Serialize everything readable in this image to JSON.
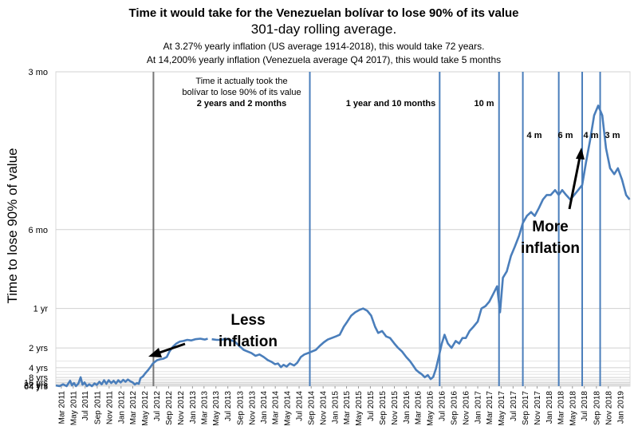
{
  "chart_data": {
    "type": "line",
    "title": "Time it would take for the Venezuelan bolívar to lose 90% of its value",
    "subtitle": "301-day rolling average.",
    "notes": [
      "At 3.27% yearly inflation (US average 1914-2018), this would take 72 years.",
      "At 14,200% yearly inflation (Venezuela average Q4 2017), this would take 5 months"
    ],
    "ylabel": "Time to lose 90% of value",
    "y_scale": "reciprocal",
    "y_ticks": [
      {
        "label": "3 mo",
        "years": 0.25
      },
      {
        "label": "6 mo",
        "years": 0.5
      },
      {
        "label": "1 yr",
        "years": 1
      },
      {
        "label": "2 yrs",
        "years": 2
      },
      {
        "label": "4 yrs",
        "years": 4
      },
      {
        "label": "8 yrs",
        "years": 8
      },
      {
        "label": "16 yrs",
        "years": 16
      },
      {
        "label": "32 yrs",
        "years": 32
      },
      {
        "label": "64 yrs",
        "years": 64
      }
    ],
    "x_ticks": [
      "Mar 2011",
      "May 2011",
      "Jul 2011",
      "Sep 2011",
      "Nov 2011",
      "Jan 2012",
      "Mar 2012",
      "May 2012",
      "Jul 2012",
      "Sep 2012",
      "Nov 2012",
      "Jan 2013",
      "Mar 2013",
      "May 2013",
      "Jul 2013",
      "Sep 2013",
      "Nov 2013",
      "Jan 2014",
      "Mar 2014",
      "May 2014",
      "Jul 2014",
      "Sep 2014",
      "Nov 2014",
      "Jan 2015",
      "Mar 2015",
      "May 2015",
      "Jul 2015",
      "Sep 2015",
      "Nov 2015",
      "Jan 2016",
      "Mar 2016",
      "May 2016",
      "Jul 2016",
      "Sep 2016",
      "Nov 2016",
      "Jan 2017",
      "Mar 2017",
      "May 2017",
      "Jul 2017",
      "Sep 2017",
      "Nov 2017",
      "Jan 2018",
      "Mar 2018",
      "May 2018",
      "Jul 2018",
      "Sep 2018",
      "Nov 2018",
      "Jan 2019"
    ],
    "series": [
      {
        "color": "#4a7ebb",
        "points": [
          [
            "2011-02-01",
            40
          ],
          [
            "2011-02-20",
            64
          ],
          [
            "2011-03-10",
            26
          ],
          [
            "2011-03-28",
            64
          ],
          [
            "2011-04-15",
            12
          ],
          [
            "2011-04-25",
            40
          ],
          [
            "2011-05-05",
            18
          ],
          [
            "2011-05-15",
            64
          ],
          [
            "2011-05-28",
            20
          ],
          [
            "2011-06-08",
            7.8
          ],
          [
            "2011-06-18",
            30
          ],
          [
            "2011-06-28",
            16
          ],
          [
            "2011-07-10",
            64
          ],
          [
            "2011-07-22",
            26
          ],
          [
            "2011-08-05",
            64
          ],
          [
            "2011-08-18",
            20
          ],
          [
            "2011-08-30",
            32
          ],
          [
            "2011-09-12",
            14
          ],
          [
            "2011-09-24",
            26
          ],
          [
            "2011-10-06",
            11
          ],
          [
            "2011-10-18",
            22
          ],
          [
            "2011-10-30",
            11
          ],
          [
            "2011-11-12",
            18
          ],
          [
            "2011-11-24",
            12
          ],
          [
            "2011-12-06",
            20
          ],
          [
            "2011-12-18",
            11
          ],
          [
            "2011-12-30",
            16
          ],
          [
            "2012-01-12",
            10.5
          ],
          [
            "2012-01-24",
            14
          ],
          [
            "2012-02-05",
            10
          ],
          [
            "2012-02-18",
            13
          ],
          [
            "2012-03-01",
            16
          ],
          [
            "2012-03-12",
            28
          ],
          [
            "2012-03-22",
            18
          ],
          [
            "2012-04-01",
            22
          ],
          [
            "2012-04-10",
            8.5
          ],
          [
            "2012-04-22",
            7.2
          ],
          [
            "2012-05-05",
            5.5
          ],
          [
            "2012-05-18",
            4.6
          ],
          [
            "2012-06-01",
            3.8
          ],
          [
            "2012-06-12",
            3.3
          ],
          [
            "2012-06-22",
            3.1
          ],
          [
            "2012-07-04",
            2.9
          ],
          [
            "2012-07-20",
            2.8
          ],
          [
            "2012-08-05",
            2.75
          ],
          [
            "2012-08-22",
            2.6
          ],
          [
            "2012-09-05",
            2.2
          ],
          [
            "2012-09-22",
            1.95
          ],
          [
            "2012-10-10",
            1.8
          ],
          [
            "2012-10-28",
            1.72
          ],
          [
            "2012-11-15",
            1.7
          ],
          [
            "2012-12-05",
            1.66
          ],
          [
            "2012-12-25",
            1.68
          ],
          [
            "2013-01-15",
            1.64
          ],
          [
            "2013-02-10",
            1.62
          ],
          [
            "2013-03-05",
            1.65
          ],
          [
            "2013-03-20",
            1.62
          ],
          [
            "2013-04-10",
            1.64
          ],
          [
            "2013-05-05",
            1.66
          ],
          [
            "2013-05-28",
            1.66
          ],
          [
            "2013-06-20",
            1.62
          ],
          [
            "2013-07-12",
            1.66
          ],
          [
            "2013-08-05",
            1.72
          ],
          [
            "2013-08-28",
            1.9
          ],
          [
            "2013-09-20",
            2.1
          ],
          [
            "2013-10-10",
            2.2
          ],
          [
            "2013-10-30",
            2.3
          ],
          [
            "2013-11-20",
            2.5
          ],
          [
            "2013-12-10",
            2.4
          ],
          [
            "2014-01-01",
            2.6
          ],
          [
            "2014-01-22",
            2.9
          ],
          [
            "2014-02-10",
            3.1
          ],
          [
            "2014-02-28",
            3.4
          ],
          [
            "2014-03-15",
            3.3
          ],
          [
            "2014-03-30",
            3.9
          ],
          [
            "2014-04-12",
            3.5
          ],
          [
            "2014-04-28",
            3.8
          ],
          [
            "2014-05-15",
            3.3
          ],
          [
            "2014-06-05",
            3.6
          ],
          [
            "2014-06-22",
            3.2
          ],
          [
            "2014-07-10",
            2.6
          ],
          [
            "2014-07-28",
            2.4
          ],
          [
            "2014-08-15",
            2.3
          ],
          [
            "2014-09-05",
            2.2
          ],
          [
            "2014-09-25",
            2.1
          ],
          [
            "2014-10-15",
            1.9
          ],
          [
            "2014-11-05",
            1.75
          ],
          [
            "2014-11-25",
            1.65
          ],
          [
            "2014-12-15",
            1.6
          ],
          [
            "2015-01-05",
            1.55
          ],
          [
            "2015-01-25",
            1.5
          ],
          [
            "2015-02-15",
            1.3
          ],
          [
            "2015-03-05",
            1.2
          ],
          [
            "2015-03-25",
            1.1
          ],
          [
            "2015-04-15",
            1.05
          ],
          [
            "2015-05-05",
            1.02
          ],
          [
            "2015-05-25",
            1.0
          ],
          [
            "2015-06-15",
            1.03
          ],
          [
            "2015-07-05",
            1.1
          ],
          [
            "2015-07-25",
            1.3
          ],
          [
            "2015-08-10",
            1.45
          ],
          [
            "2015-08-30",
            1.4
          ],
          [
            "2015-09-20",
            1.55
          ],
          [
            "2015-10-10",
            1.6
          ],
          [
            "2015-11-01",
            1.8
          ],
          [
            "2015-11-20",
            2.0
          ],
          [
            "2015-12-10",
            2.2
          ],
          [
            "2016-01-01",
            2.6
          ],
          [
            "2016-01-20",
            3.0
          ],
          [
            "2016-02-05",
            3.6
          ],
          [
            "2016-02-20",
            4.5
          ],
          [
            "2016-03-05",
            5.2
          ],
          [
            "2016-03-20",
            6.0
          ],
          [
            "2016-04-05",
            7.8
          ],
          [
            "2016-04-20",
            6.4
          ],
          [
            "2016-05-05",
            9.5
          ],
          [
            "2016-05-18",
            7.6
          ],
          [
            "2016-06-01",
            4.2
          ],
          [
            "2016-06-15",
            2.6
          ],
          [
            "2016-07-01",
            1.8
          ],
          [
            "2016-07-15",
            1.5
          ],
          [
            "2016-08-01",
            1.8
          ],
          [
            "2016-08-20",
            2.0
          ],
          [
            "2016-09-10",
            1.7
          ],
          [
            "2016-09-28",
            1.8
          ],
          [
            "2016-10-15",
            1.6
          ],
          [
            "2016-11-01",
            1.6
          ],
          [
            "2016-11-20",
            1.4
          ],
          [
            "2016-12-10",
            1.3
          ],
          [
            "2017-01-01",
            1.2
          ],
          [
            "2017-01-20",
            1.0
          ],
          [
            "2017-02-10",
            0.97
          ],
          [
            "2017-03-01",
            0.92
          ],
          [
            "2017-03-20",
            0.85
          ],
          [
            "2017-04-10",
            0.78
          ],
          [
            "2017-04-25",
            1.05
          ],
          [
            "2017-05-10",
            0.72
          ],
          [
            "2017-05-30",
            0.68
          ],
          [
            "2017-06-20",
            0.6
          ],
          [
            "2017-07-10",
            0.56
          ],
          [
            "2017-08-01",
            0.52
          ],
          [
            "2017-08-20",
            0.48
          ],
          [
            "2017-09-10",
            0.46
          ],
          [
            "2017-10-01",
            0.45
          ],
          [
            "2017-10-20",
            0.46
          ],
          [
            "2017-11-10",
            0.44
          ],
          [
            "2017-12-01",
            0.42
          ],
          [
            "2017-12-20",
            0.41
          ],
          [
            "2018-01-10",
            0.41
          ],
          [
            "2018-02-01",
            0.4
          ],
          [
            "2018-02-20",
            0.41
          ],
          [
            "2018-03-10",
            0.4
          ],
          [
            "2018-03-30",
            0.41
          ],
          [
            "2018-04-20",
            0.42
          ],
          [
            "2018-05-10",
            0.41
          ],
          [
            "2018-05-30",
            0.4
          ],
          [
            "2018-06-20",
            0.39
          ],
          [
            "2018-07-10",
            0.35
          ],
          [
            "2018-07-30",
            0.32
          ],
          [
            "2018-08-20",
            0.29
          ],
          [
            "2018-09-10",
            0.28
          ],
          [
            "2018-10-01",
            0.29
          ],
          [
            "2018-10-20",
            0.33
          ],
          [
            "2018-11-10",
            0.36
          ],
          [
            "2018-12-01",
            0.37
          ],
          [
            "2018-12-20",
            0.36
          ],
          [
            "2019-01-10",
            0.38
          ],
          [
            "2019-01-31",
            0.41
          ],
          [
            "2019-02-18",
            0.42
          ]
        ]
      }
    ],
    "gap": [
      "2013-03-22",
      "2013-04-08"
    ],
    "dividers": [
      {
        "date": "2012-06-15",
        "color": "#777777"
      },
      {
        "date": "2014-08-25",
        "color": "#4a7ebb"
      },
      {
        "date": "2016-06-20",
        "color": "#4a7ebb"
      },
      {
        "date": "2017-04-20",
        "color": "#4a7ebb"
      },
      {
        "date": "2017-08-20",
        "color": "#4a7ebb"
      },
      {
        "date": "2018-02-20",
        "color": "#4a7ebb"
      },
      {
        "date": "2018-06-20",
        "color": "#4a7ebb"
      },
      {
        "date": "2018-09-20",
        "color": "#4a7ebb"
      }
    ],
    "annotations": {
      "actual_line1": "Time it actually took the",
      "actual_line2": "bolívar to lose 90% of its value",
      "p1": "2 years and 2 months",
      "p2": "1 year and 10 months",
      "p3": "10 m",
      "p4": "4 m",
      "p5": "6 m",
      "p6": "4 m",
      "p7": "3 m",
      "less1": "Less",
      "less2": "inflation",
      "more1": "More",
      "more2": "inflation"
    },
    "grid": true
  }
}
